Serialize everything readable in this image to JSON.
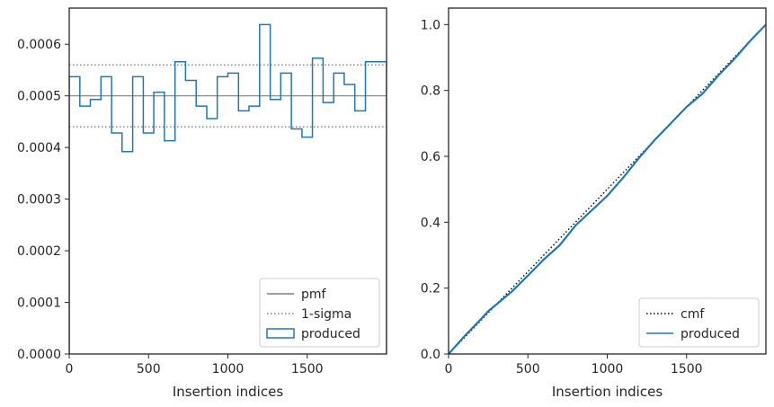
{
  "chart_data": [
    {
      "type": "step",
      "xlabel": "Insertion indices",
      "ylabel": "",
      "xlim": [
        0,
        2000
      ],
      "ylim": [
        0,
        0.00067
      ],
      "xticks": [
        0,
        500,
        1000,
        1500
      ],
      "xtick_labels": [
        "0",
        "500",
        "1000",
        "1500"
      ],
      "yticks": [
        0,
        0.0001,
        0.0002,
        0.0003,
        0.0004,
        0.0005,
        0.0006
      ],
      "ytick_labels": [
        "0.0000",
        "0.0001",
        "0.0002",
        "0.0003",
        "0.0004",
        "0.0005",
        "0.0006"
      ],
      "grid": false,
      "legend_position": "lower right",
      "bin_edges": [
        0,
        67,
        133,
        200,
        267,
        333,
        400,
        467,
        533,
        600,
        667,
        733,
        800,
        867,
        933,
        1000,
        1067,
        1133,
        1200,
        1267,
        1333,
        1400,
        1467,
        1533,
        1600,
        1667,
        1733,
        1800,
        1867,
        1933,
        2000
      ],
      "series": [
        {
          "name": "pmf",
          "style": "solid",
          "color": "#808080",
          "y": 0.0005
        },
        {
          "name": "1-sigma",
          "style": "dotted",
          "color": "#808080",
          "y": [
            0.00044,
            0.00056
          ]
        },
        {
          "name": "produced",
          "style": "step",
          "color": "#1f77b4",
          "values": [
            0.000537,
            0.00048,
            0.000493,
            0.000537,
            0.000428,
            0.000392,
            0.000537,
            0.000428,
            0.000507,
            0.000413,
            0.000566,
            0.00053,
            0.00048,
            0.000456,
            0.000537,
            0.000544,
            0.000471,
            0.00048,
            0.000638,
            0.000493,
            0.000544,
            0.000436,
            0.00042,
            0.000573,
            0.000487,
            0.000544,
            0.000522,
            0.000471,
            0.000566,
            0.000566
          ]
        }
      ],
      "legend": [
        "pmf",
        "1-sigma",
        "produced"
      ]
    },
    {
      "type": "line",
      "xlabel": "Insertion indices",
      "ylabel": "",
      "xlim": [
        0,
        2000
      ],
      "ylim": [
        0,
        1.05
      ],
      "xticks": [
        0,
        500,
        1000,
        1500
      ],
      "xtick_labels": [
        "0",
        "500",
        "1000",
        "1500"
      ],
      "yticks": [
        0,
        0.2,
        0.4,
        0.6,
        0.8,
        1.0
      ],
      "ytick_labels": [
        "0.0",
        "0.2",
        "0.4",
        "0.6",
        "0.8",
        "1.0"
      ],
      "grid": false,
      "legend_position": "lower right",
      "series": [
        {
          "name": "cmf",
          "style": "dotted",
          "color": "#000000",
          "x": [
            0,
            2000
          ],
          "y": [
            0,
            1.0
          ]
        },
        {
          "name": "produced",
          "style": "solid",
          "color": "#1f77b4",
          "x": [
            0,
            100,
            200,
            250,
            300,
            400,
            500,
            600,
            700,
            800,
            900,
            1000,
            1100,
            1200,
            1300,
            1400,
            1500,
            1600,
            1700,
            1800,
            1900,
            2000
          ],
          "y": [
            0,
            0.054,
            0.104,
            0.13,
            0.15,
            0.19,
            0.238,
            0.287,
            0.33,
            0.39,
            0.435,
            0.48,
            0.535,
            0.595,
            0.65,
            0.7,
            0.75,
            0.79,
            0.845,
            0.895,
            0.95,
            1.0
          ]
        }
      ],
      "legend": [
        "cmf",
        "produced"
      ]
    }
  ]
}
